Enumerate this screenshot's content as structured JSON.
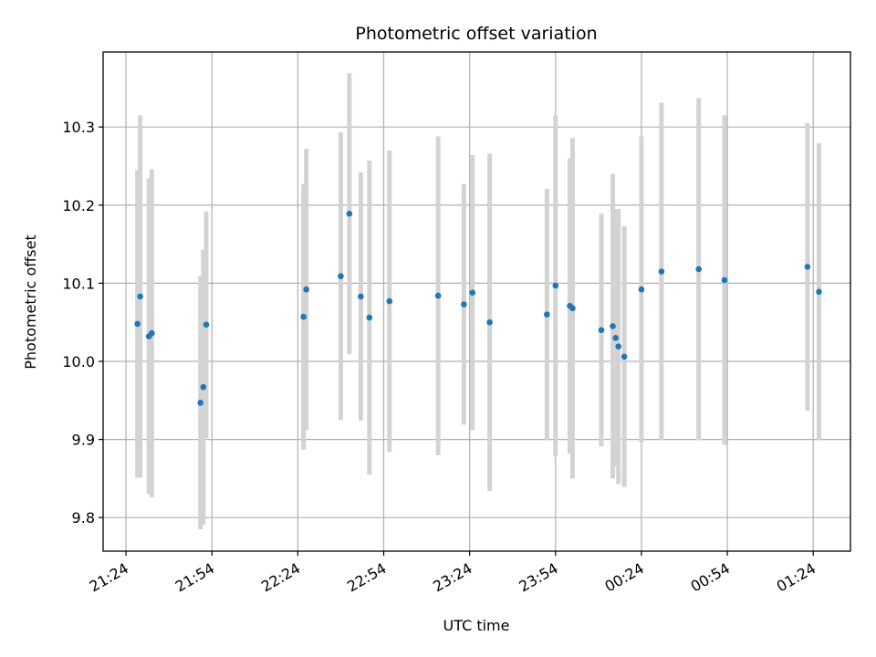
{
  "chart_data": {
    "type": "scatter",
    "title": "Photometric offset variation",
    "xlabel": "UTC time",
    "ylabel": "Photometric offset",
    "x_ticks": [
      "21:24",
      "21:54",
      "22:24",
      "22:54",
      "23:24",
      "23:54",
      "00:24",
      "00:54",
      "01:24"
    ],
    "y_ticks": [
      "9.8",
      "9.9",
      "10.0",
      "10.1",
      "10.2",
      "10.3"
    ],
    "xlim": [
      "21:16",
      "01:37"
    ],
    "ylim": [
      9.757,
      10.396
    ],
    "grid": true,
    "legend": "none",
    "point_color": "#1f77b4",
    "errorbar_color": "#d3d3d3",
    "points": [
      {
        "x": "21:28",
        "y": 10.048,
        "err": 0.197
      },
      {
        "x": "21:28",
        "y": 10.083,
        "err": 0.232
      },
      {
        "x": "21:32",
        "y": 10.032,
        "err": 0.202
      },
      {
        "x": "21:33",
        "y": 10.036,
        "err": 0.21
      },
      {
        "x": "21:50",
        "y": 9.947,
        "err": 0.162
      },
      {
        "x": "21:51",
        "y": 9.967,
        "err": 0.176
      },
      {
        "x": "21:52",
        "y": 10.047,
        "err": 0.145
      },
      {
        "x": "22:26",
        "y": 10.057,
        "err": 0.17
      },
      {
        "x": "22:26",
        "y": 10.092,
        "err": 0.18
      },
      {
        "x": "22:39",
        "y": 10.109,
        "err": 0.184
      },
      {
        "x": "22:42",
        "y": 10.189,
        "err": 0.18
      },
      {
        "x": "22:46",
        "y": 10.083,
        "err": 0.159
      },
      {
        "x": "22:49",
        "y": 10.056,
        "err": 0.201
      },
      {
        "x": "22:56",
        "y": 10.077,
        "err": 0.193
      },
      {
        "x": "23:13",
        "y": 10.084,
        "err": 0.204
      },
      {
        "x": "23:22",
        "y": 10.073,
        "err": 0.154
      },
      {
        "x": "23:25",
        "y": 10.088,
        "err": 0.176
      },
      {
        "x": "23:31",
        "y": 10.05,
        "err": 0.216
      },
      {
        "x": "23:51",
        "y": 10.06,
        "err": 0.161
      },
      {
        "x": "23:54",
        "y": 10.097,
        "err": 0.218
      },
      {
        "x": "23:59",
        "y": 10.071,
        "err": 0.189
      },
      {
        "x": "23:59",
        "y": 10.068,
        "err": 0.218
      },
      {
        "x": "00:10",
        "y": 10.04,
        "err": 0.149
      },
      {
        "x": "00:14",
        "y": 10.045,
        "err": 0.195
      },
      {
        "x": "00:15",
        "y": 10.03,
        "err": 0.165
      },
      {
        "x": "00:15",
        "y": 10.019,
        "err": 0.176
      },
      {
        "x": "00:18",
        "y": 10.006,
        "err": 0.167
      },
      {
        "x": "00:24",
        "y": 10.092,
        "err": 0.196
      },
      {
        "x": "00:31",
        "y": 10.115,
        "err": 0.216
      },
      {
        "x": "00:44",
        "y": 10.118,
        "err": 0.219
      },
      {
        "x": "00:53",
        "y": 10.104,
        "err": 0.211
      },
      {
        "x": "01:22",
        "y": 10.121,
        "err": 0.184
      },
      {
        "x": "01:26",
        "y": 10.089,
        "err": 0.19
      }
    ]
  }
}
